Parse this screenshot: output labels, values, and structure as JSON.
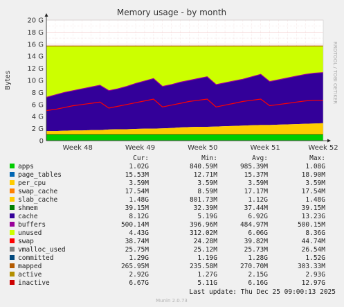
{
  "chart_data": {
    "type": "area",
    "title": "Memory usage - by month",
    "ylabel": "Bytes",
    "xlabel": "",
    "ylim": [
      0,
      20
    ],
    "y_unit": "G",
    "y_ticks": [
      "0",
      "2 G",
      "4 G",
      "6 G",
      "8 G",
      "10 G",
      "12 G",
      "14 G",
      "16 G",
      "18 G",
      "20 G"
    ],
    "x_ticks": [
      "Week 48",
      "Week 49",
      "Week 50",
      "Week 51",
      "Week 52"
    ],
    "grid": true,
    "x_days": [
      0,
      1,
      2,
      3,
      4,
      5,
      6,
      7,
      8,
      9,
      10,
      11,
      12,
      13,
      14,
      15,
      16,
      17,
      18,
      19,
      20,
      21,
      22,
      23,
      24,
      25,
      26,
      27,
      28,
      29,
      30,
      31
    ],
    "cumulative_boundaries": {
      "green_top": [
        1.0,
        1.0,
        1.0,
        1.0,
        1.0,
        1.0,
        1.0,
        1.0,
        1.0,
        1.0,
        1.0,
        1.0,
        1.0,
        1.0,
        1.0,
        1.0,
        1.0,
        1.0,
        1.0,
        1.0,
        1.0,
        1.0,
        1.0,
        1.0,
        1.0,
        1.0,
        1.0,
        1.0,
        1.0,
        1.0,
        1.0,
        1.0
      ],
      "slab_top": [
        1.6,
        1.6,
        1.65,
        1.7,
        1.7,
        1.75,
        1.75,
        1.85,
        1.9,
        1.9,
        1.95,
        2.0,
        2.0,
        2.05,
        2.1,
        2.2,
        2.25,
        2.3,
        2.3,
        2.35,
        2.4,
        2.45,
        2.5,
        2.55,
        2.6,
        2.6,
        2.65,
        2.7,
        2.75,
        2.8,
        2.85,
        2.9
      ],
      "cache_top": [
        7.2,
        7.6,
        8.0,
        8.3,
        8.6,
        8.9,
        9.2,
        8.3,
        8.6,
        9.0,
        9.5,
        9.9,
        10.3,
        9.0,
        9.3,
        9.7,
        10.0,
        10.3,
        10.6,
        9.3,
        9.6,
        9.9,
        10.2,
        10.6,
        11.0,
        9.8,
        10.1,
        10.4,
        10.7,
        11.0,
        11.2,
        11.3
      ],
      "unused_top": [
        15.7,
        15.7,
        15.7,
        15.7,
        15.7,
        15.7,
        15.7,
        15.7,
        15.7,
        15.7,
        15.7,
        15.7,
        15.7,
        15.7,
        15.7,
        15.7,
        15.7,
        15.7,
        15.7,
        15.7,
        15.7,
        15.7,
        15.7,
        15.7,
        15.7,
        15.7,
        15.7,
        15.7,
        15.7,
        15.7,
        15.7,
        15.7
      ],
      "inactive_line": [
        5.0,
        5.2,
        5.5,
        5.8,
        6.0,
        6.2,
        6.4,
        5.4,
        5.7,
        6.0,
        6.3,
        6.6,
        6.9,
        5.6,
        5.9,
        6.2,
        6.5,
        6.7,
        6.9,
        5.6,
        5.9,
        6.2,
        6.5,
        6.7,
        6.9,
        5.8,
        6.0,
        6.2,
        6.4,
        6.6,
        6.7,
        6.7
      ]
    },
    "series": [
      {
        "name": "apps",
        "color": "#00cc00",
        "cur": "1.02G",
        "min": "840.59M",
        "avg": "985.39M",
        "max": "1.08G"
      },
      {
        "name": "page_tables",
        "color": "#0066b3",
        "cur": "15.53M",
        "min": "12.71M",
        "avg": "15.37M",
        "max": "18.90M"
      },
      {
        "name": "per_cpu",
        "color": "#ff8000",
        "cur": "3.59M",
        "min": "3.59M",
        "avg": "3.59M",
        "max": "3.59M"
      },
      {
        "name": "swap_cache",
        "color": "#ffcc00",
        "cur": "17.54M",
        "min": "8.59M",
        "avg": "17.17M",
        "max": "17.54M"
      },
      {
        "name": "slab_cache",
        "color": "#330099",
        "cur": "1.48G",
        "min": "801.73M",
        "avg": "1.12G",
        "max": "1.48G"
      },
      {
        "name": "shmem",
        "color": "#990099",
        "cur": "39.15M",
        "min": "32.39M",
        "avg": "37.44M",
        "max": "39.15M"
      },
      {
        "name": "cache",
        "color": "#ccff00",
        "cur": "8.12G",
        "min": "5.19G",
        "avg": "6.92G",
        "max": "13.23G"
      },
      {
        "name": "buffers",
        "color": "#ff0000",
        "cur": "500.14M",
        "min": "396.96M",
        "avg": "484.97M",
        "max": "500.15M"
      },
      {
        "name": "unused",
        "color": "#808080",
        "cur": "4.43G",
        "min": "312.02M",
        "avg": "6.06G",
        "max": "8.36G"
      },
      {
        "name": "swap",
        "color": "#008f00",
        "cur": "38.74M",
        "min": "24.28M",
        "avg": "39.82M",
        "max": "44.74M"
      },
      {
        "name": "vmalloc_used",
        "color": "#00487d",
        "cur": "25.75M",
        "min": "25.12M",
        "avg": "25.73M",
        "max": "26.54M"
      },
      {
        "name": "committed",
        "color": "#b35a00",
        "cur": "1.29G",
        "min": "1.19G",
        "avg": "1.28G",
        "max": "1.52G"
      },
      {
        "name": "mapped",
        "color": "#b38f00",
        "cur": "265.95M",
        "min": "235.58M",
        "avg": "270.70M",
        "max": "303.33M"
      },
      {
        "name": "active",
        "color": "#6b006b",
        "cur": "2.92G",
        "min": "1.27G",
        "avg": "2.15G",
        "max": "2.93G"
      },
      {
        "name": "inactive",
        "color": "#8fb300",
        "cur": "6.67G",
        "min": "5.11G",
        "avg": "6.16G",
        "max": "12.97G"
      }
    ],
    "legend_swatch_colors": [
      "#00cc00",
      "#0066b3",
      "#ffcc00",
      "#ff8000",
      "#ffcc00",
      "#008000",
      "#330099",
      "#990099",
      "#ccff00",
      "#ff0000",
      "#808080",
      "#00487d",
      "#b35a00",
      "#b38f00",
      "#cc0000"
    ],
    "legend_headers": {
      "cur": "Cur:",
      "min": "Min:",
      "avg": "Avg:",
      "max": "Max:"
    },
    "last_update": "Last update:  Thu Dec 25 09:00:13 2025",
    "side_label": "RRDTOOL / TOBI OETIKER",
    "footer": "Munin 2.0.73"
  }
}
